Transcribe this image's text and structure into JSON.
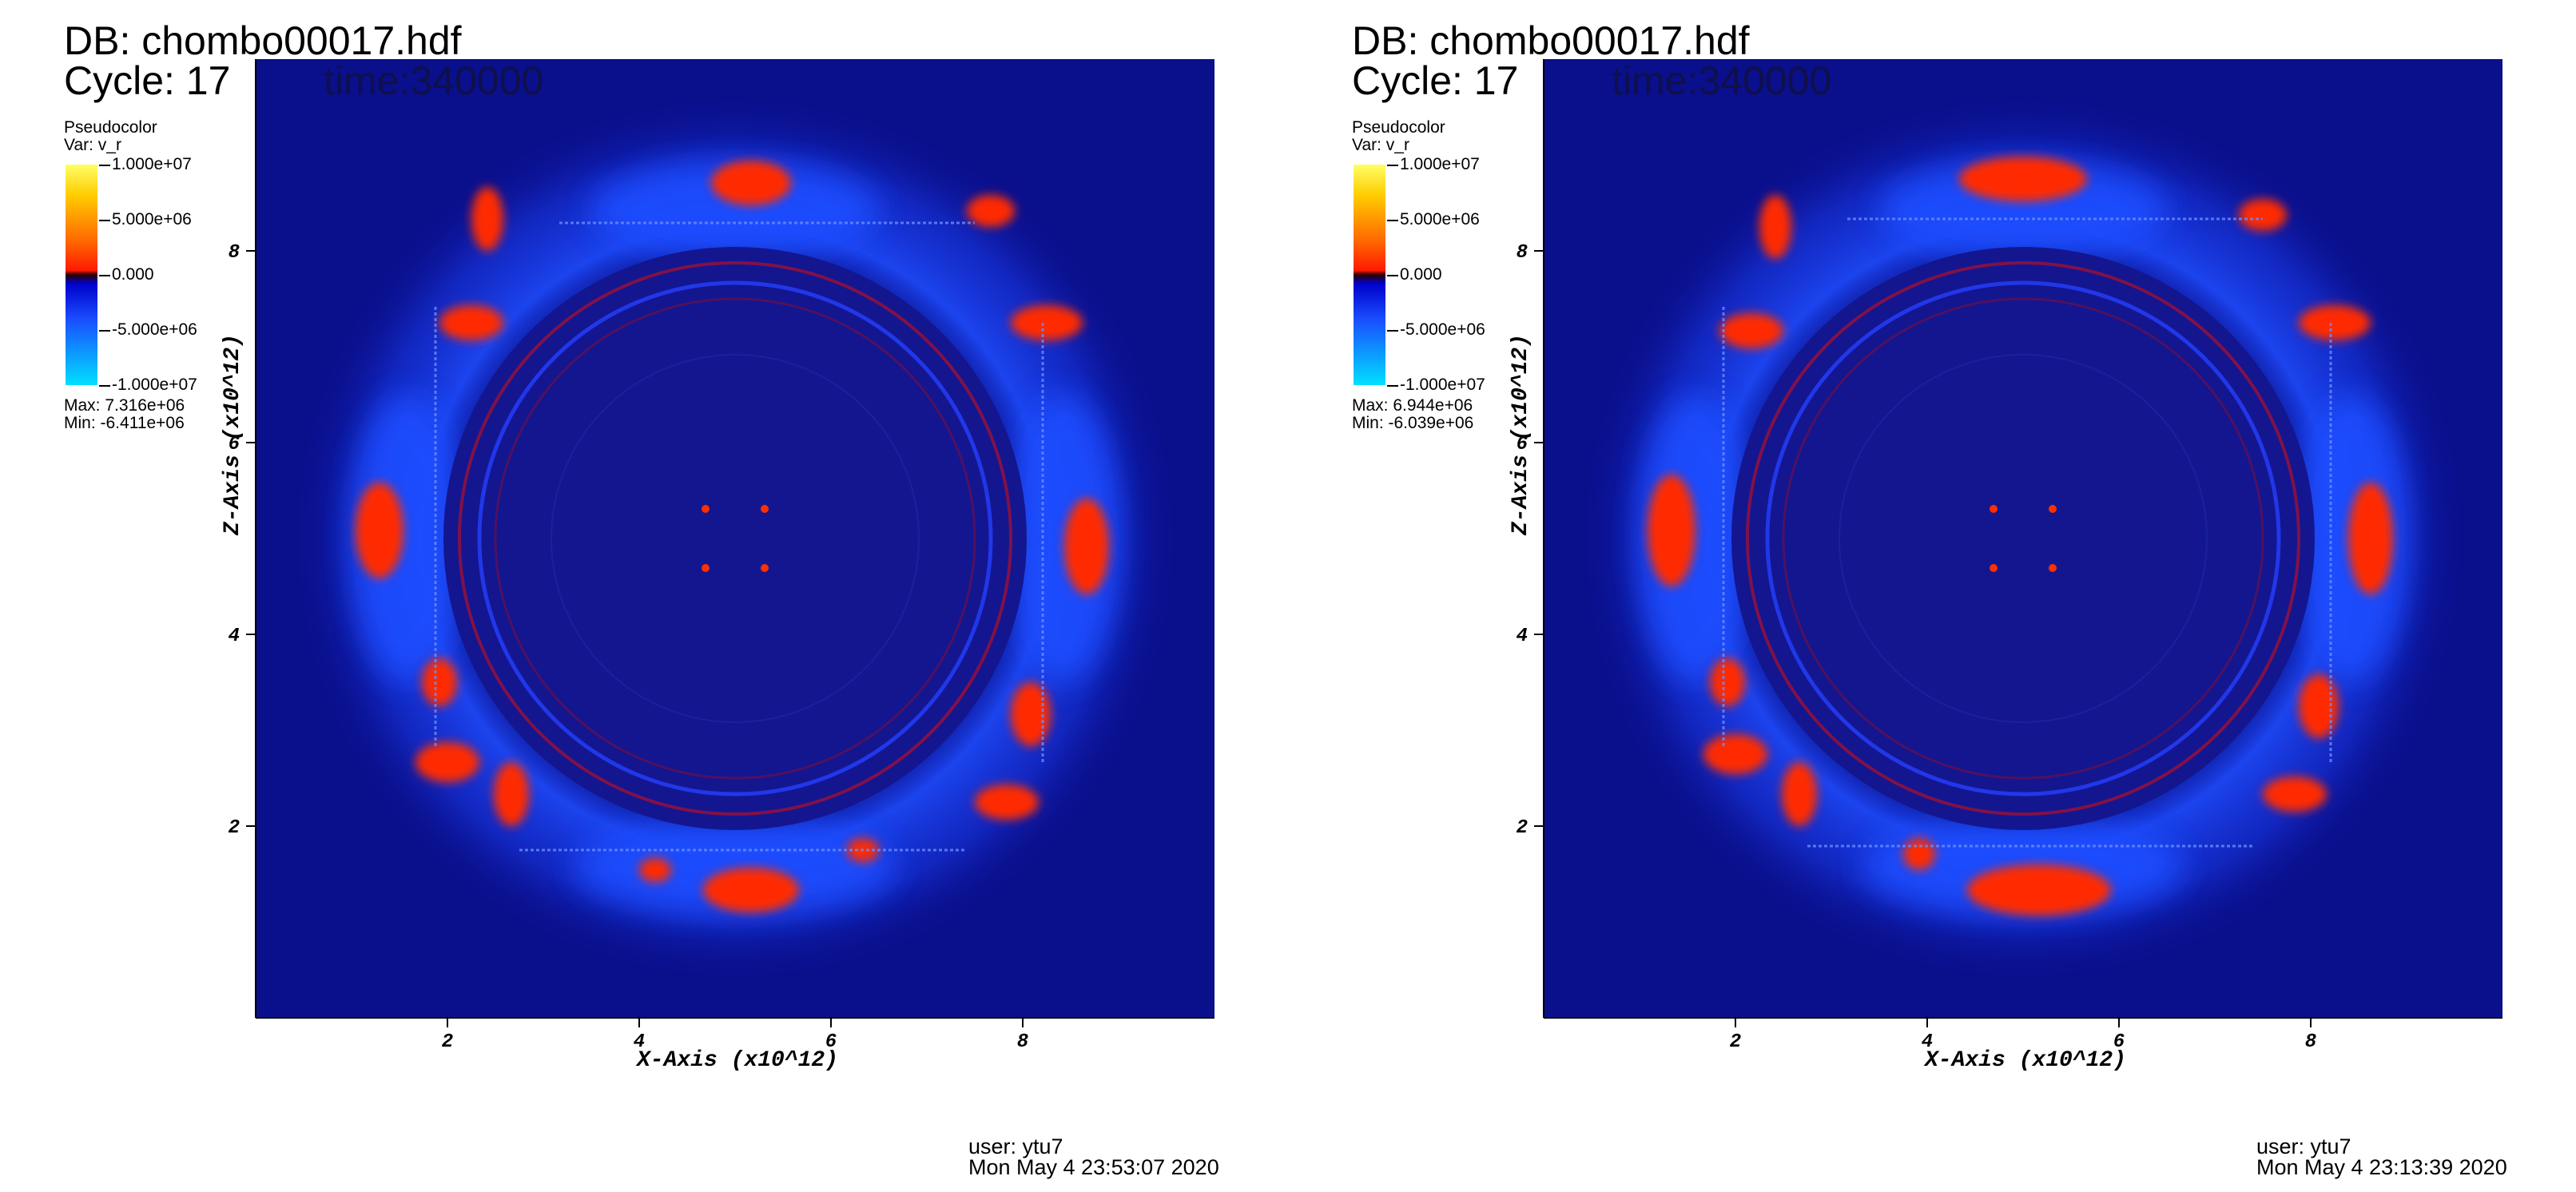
{
  "panels": [
    {
      "db_label": "DB: chombo00017.hdf",
      "cycle_label": "Cycle: 17",
      "time_label": "time:340000",
      "legend": {
        "title": "Pseudocolor",
        "var": "Var: v_r",
        "ticks": [
          "1.000e+07",
          "5.000e+06",
          "0.000",
          "-5.000e+06",
          "-1.000e+07"
        ],
        "max": "Max:  7.316e+06",
        "min": "Min: -6.411e+06"
      },
      "xlabel": "X-Axis (x10^12)",
      "ylabel": "Z-Axis (x10^12)",
      "user": "user: ytu7",
      "date": "Mon May  4 23:53:07 2020"
    },
    {
      "db_label": "DB: chombo00017.hdf",
      "cycle_label": "Cycle: 17",
      "time_label": "time:340000",
      "legend": {
        "title": "Pseudocolor",
        "var": "Var: v_r",
        "ticks": [
          "1.000e+07",
          "5.000e+06",
          "0.000",
          "-5.000e+06",
          "-1.000e+07"
        ],
        "max": "Max:  6.944e+06",
        "min": "Min: -6.039e+06"
      },
      "xlabel": "X-Axis (x10^12)",
      "ylabel": "Z-Axis (x10^12)",
      "user": "user: ytu7",
      "date": "Mon May  4 23:13:39 2020"
    }
  ],
  "chart_data": [
    {
      "type": "heatmap",
      "variable": "v_r",
      "colorbar": {
        "range": [
          -10000000,
          10000000
        ],
        "ticks": [
          10000000,
          5000000,
          0,
          -5000000,
          -10000000
        ]
      },
      "x_ticks": [
        "2",
        "4",
        "6",
        "8"
      ],
      "z_ticks": [
        "2",
        "4",
        "6",
        "8"
      ],
      "xlim": [
        0,
        10
      ],
      "zlim": [
        0,
        10
      ],
      "xlabel": "X-Axis (x10^12)",
      "ylabel": "Z-Axis (x10^12)",
      "max": 7316000,
      "min": -6411000,
      "colors": {
        "background": "#0a0f8c",
        "positive": "#ff2a00",
        "negative": "#1f4dff"
      }
    },
    {
      "type": "heatmap",
      "variable": "v_r",
      "colorbar": {
        "range": [
          -10000000,
          10000000
        ],
        "ticks": [
          10000000,
          5000000,
          0,
          -5000000,
          -10000000
        ]
      },
      "x_ticks": [
        "2",
        "4",
        "6",
        "8"
      ],
      "z_ticks": [
        "2",
        "4",
        "6",
        "8"
      ],
      "xlim": [
        0,
        10
      ],
      "zlim": [
        0,
        10
      ],
      "xlabel": "X-Axis (x10^12)",
      "ylabel": "Z-Axis (x10^12)",
      "max": 6944000,
      "min": -6039000,
      "colors": {
        "background": "#0a0f8c",
        "positive": "#ff2a00",
        "negative": "#1f4dff"
      }
    }
  ]
}
